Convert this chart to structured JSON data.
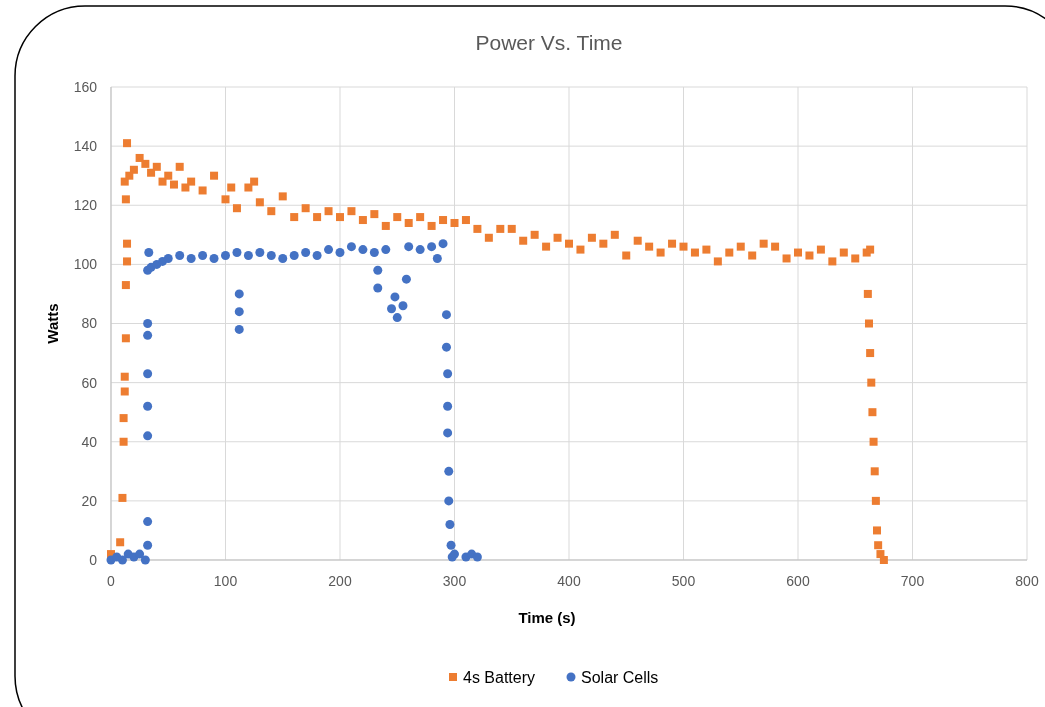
{
  "chart_data": {
    "type": "scatter",
    "title": "Power Vs. Time",
    "xlabel": "Time (s)",
    "ylabel": "Watts",
    "xlim": [
      0,
      800
    ],
    "xticks": [
      0,
      100,
      200,
      300,
      400,
      500,
      600,
      700,
      800
    ],
    "ylim": [
      0,
      160
    ],
    "yticks": [
      0,
      20,
      40,
      60,
      80,
      100,
      120,
      140,
      160
    ],
    "grid": true,
    "legend": "bottom",
    "series": [
      {
        "name": "4s Battery",
        "color": "#ed7d31",
        "marker": "square",
        "x": [
          0,
          8,
          10,
          11,
          11,
          12,
          12,
          13,
          13,
          14,
          14,
          13,
          12,
          14,
          16,
          20,
          25,
          30,
          35,
          40,
          45,
          50,
          55,
          60,
          65,
          70,
          80,
          90,
          100,
          105,
          110,
          120,
          125,
          130,
          140,
          150,
          160,
          170,
          180,
          190,
          200,
          210,
          220,
          230,
          240,
          250,
          260,
          270,
          280,
          290,
          300,
          310,
          320,
          330,
          340,
          350,
          360,
          370,
          380,
          390,
          400,
          410,
          420,
          430,
          440,
          450,
          460,
          470,
          480,
          490,
          500,
          510,
          520,
          530,
          540,
          550,
          560,
          570,
          580,
          590,
          600,
          610,
          620,
          630,
          640,
          650,
          660,
          663,
          661,
          662,
          663,
          664,
          665,
          666,
          667,
          668,
          669,
          670,
          672,
          675
        ],
        "values": [
          2,
          6,
          21,
          40,
          48,
          57,
          62,
          75,
          93,
          101,
          107,
          122,
          128,
          141,
          130,
          132,
          136,
          134,
          131,
          133,
          128,
          130,
          127,
          133,
          126,
          128,
          125,
          130,
          122,
          126,
          119,
          126,
          128,
          121,
          118,
          123,
          116,
          119,
          116,
          118,
          116,
          118,
          115,
          117,
          113,
          116,
          114,
          116,
          113,
          115,
          114,
          115,
          112,
          109,
          112,
          112,
          108,
          110,
          106,
          109,
          107,
          105,
          109,
          107,
          110,
          103,
          108,
          106,
          104,
          107,
          106,
          104,
          105,
          101,
          104,
          106,
          103,
          107,
          106,
          102,
          104,
          103,
          105,
          101,
          104,
          102,
          104,
          105,
          90,
          80,
          70,
          60,
          50,
          40,
          30,
          20,
          10,
          5,
          2,
          0
        ]
      },
      {
        "name": "Solar Cells",
        "color": "#4472c4",
        "marker": "circle",
        "x": [
          0,
          5,
          10,
          15,
          20,
          25,
          30,
          32,
          32,
          32,
          32,
          32,
          32,
          32,
          32,
          33,
          35,
          40,
          45,
          50,
          60,
          70,
          80,
          90,
          100,
          110,
          112,
          112,
          112,
          120,
          130,
          140,
          150,
          160,
          170,
          180,
          190,
          200,
          210,
          220,
          230,
          233,
          233,
          240,
          245,
          248,
          250,
          255,
          258,
          260,
          270,
          280,
          285,
          290,
          293,
          293,
          294,
          294,
          294,
          295,
          295,
          296,
          297,
          298,
          300,
          310,
          315,
          320
        ],
        "values": [
          0,
          1,
          0,
          2,
          1,
          2,
          0,
          5,
          13,
          42,
          52,
          63,
          76,
          80,
          98,
          104,
          99,
          100,
          101,
          102,
          103,
          102,
          103,
          102,
          103,
          104,
          90,
          84,
          78,
          103,
          104,
          103,
          102,
          103,
          104,
          103,
          105,
          104,
          106,
          105,
          104,
          98,
          92,
          105,
          85,
          89,
          82,
          86,
          95,
          106,
          105,
          106,
          102,
          107,
          83,
          72,
          63,
          52,
          43,
          30,
          20,
          12,
          5,
          1,
          2,
          1,
          2,
          1
        ]
      }
    ]
  }
}
